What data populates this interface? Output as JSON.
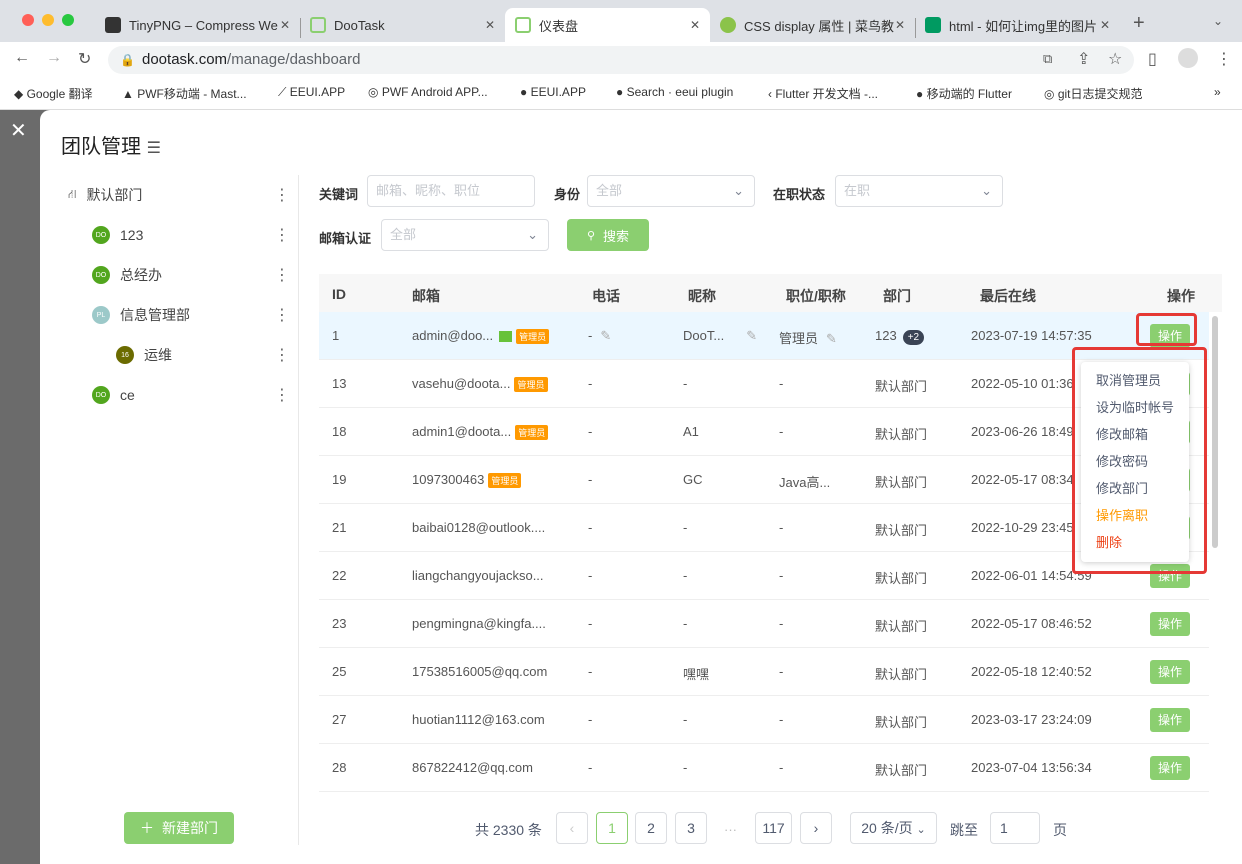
{
  "browser": {
    "tabs": [
      {
        "title": "TinyPNG – Compress We",
        "active": false
      },
      {
        "title": "DooTask",
        "active": false
      },
      {
        "title": "仪表盘",
        "active": true
      },
      {
        "title": "CSS display 属性 | 菜鸟教",
        "active": false
      },
      {
        "title": "html - 如何让img里的图片",
        "active": false
      }
    ],
    "url_host": "dootask.com",
    "url_path": "/manage/dashboard",
    "bookmarks": [
      "Google 翻译",
      "PWF移动端 - Mast...",
      "EEUI.APP",
      "PWF Android APP...",
      "EEUI.APP",
      "Search · eeui plugin",
      "Flutter 开发文档 -...",
      "移动端的 Flutter",
      "git日志提交规范"
    ]
  },
  "modal": {
    "title": "团队管理",
    "tree": [
      {
        "name": "默认部门",
        "avatar": "",
        "level": 0
      },
      {
        "name": "123",
        "avatar": "DO",
        "level": 1,
        "color": "#52a61e"
      },
      {
        "name": "总经办",
        "avatar": "DO",
        "level": 1,
        "color": "#52a61e"
      },
      {
        "name": "信息管理部",
        "avatar": "PL",
        "level": 1,
        "color": "#9cc9c9"
      },
      {
        "name": "运维",
        "avatar": "16",
        "level": 2,
        "color": "#6b6b00"
      },
      {
        "name": "ce",
        "avatar": "DO",
        "level": 1,
        "color": "#52a61e"
      }
    ],
    "new_dept": "新建部门",
    "filters": {
      "keyword_label": "关键词",
      "keyword_placeholder": "邮箱、昵称、职位",
      "identity_label": "身份",
      "identity_value": "全部",
      "status_label": "在职状态",
      "status_value": "在职",
      "email_label": "邮箱认证",
      "email_value": "全部",
      "search": "搜索"
    },
    "columns": [
      "ID",
      "邮箱",
      "电话",
      "昵称",
      "职位/职称",
      "部门",
      "最后在线",
      "操作"
    ],
    "rows": [
      {
        "id": "1",
        "email": "admin@doo...",
        "verified": true,
        "admin": "管理员",
        "phone": "-",
        "nick": "DooT...",
        "job": "管理员",
        "dept": "123",
        "dept_more": "+2",
        "last": "2023-07-19 14:57:35",
        "edit": true
      },
      {
        "id": "13",
        "email": "vasehu@doota...",
        "admin": "管理员",
        "phone": "-",
        "nick": "-",
        "job": "-",
        "dept": "默认部门",
        "last": "2022-05-10 01:36"
      },
      {
        "id": "18",
        "email": "admin1@doota...",
        "admin": "管理员",
        "phone": "-",
        "nick": "A1",
        "job": "-",
        "dept": "默认部门",
        "last": "2023-06-26 18:49"
      },
      {
        "id": "19",
        "email": "1097300463",
        "admin": "管理员",
        "phone": "-",
        "nick": "GC",
        "job": "Java高...",
        "dept": "默认部门",
        "last": "2022-05-17 08:34"
      },
      {
        "id": "21",
        "email": "baibai0128@outlook....",
        "phone": "-",
        "nick": "-",
        "job": "-",
        "dept": "默认部门",
        "last": "2022-10-29 23:45"
      },
      {
        "id": "22",
        "email": "liangchangyoujackso...",
        "phone": "-",
        "nick": "-",
        "job": "-",
        "dept": "默认部门",
        "last": "2022-06-01 14:54:59"
      },
      {
        "id": "23",
        "email": "pengmingna@kingfa....",
        "phone": "-",
        "nick": "-",
        "job": "-",
        "dept": "默认部门",
        "last": "2022-05-17 08:46:52"
      },
      {
        "id": "25",
        "email": "17538516005@qq.com",
        "phone": "-",
        "nick": "嘿嘿",
        "job": "-",
        "dept": "默认部门",
        "last": "2022-05-18 12:40:52"
      },
      {
        "id": "27",
        "email": "huotian1112@163.com",
        "phone": "-",
        "nick": "-",
        "job": "-",
        "dept": "默认部门",
        "last": "2023-03-17 23:24:09"
      },
      {
        "id": "28",
        "email": "867822412@qq.com",
        "phone": "-",
        "nick": "-",
        "job": "-",
        "dept": "默认部门",
        "last": "2023-07-04 13:56:34"
      }
    ],
    "op_label": "操作",
    "menu": [
      {
        "label": "取消管理员"
      },
      {
        "label": "设为临时帐号"
      },
      {
        "label": "修改邮箱"
      },
      {
        "label": "修改密码"
      },
      {
        "label": "修改部门"
      },
      {
        "label": "操作离职",
        "color": "#ff9900"
      },
      {
        "label": "删除",
        "color": "#ed4014"
      }
    ],
    "pagination": {
      "total": "共 2330 条",
      "pages": [
        "1",
        "2",
        "3",
        "117"
      ],
      "ellipsis": "···",
      "current": "1",
      "page_size": "20 条/页",
      "jump_label": "跳至",
      "jump_value": "1",
      "page_unit": "页"
    }
  }
}
